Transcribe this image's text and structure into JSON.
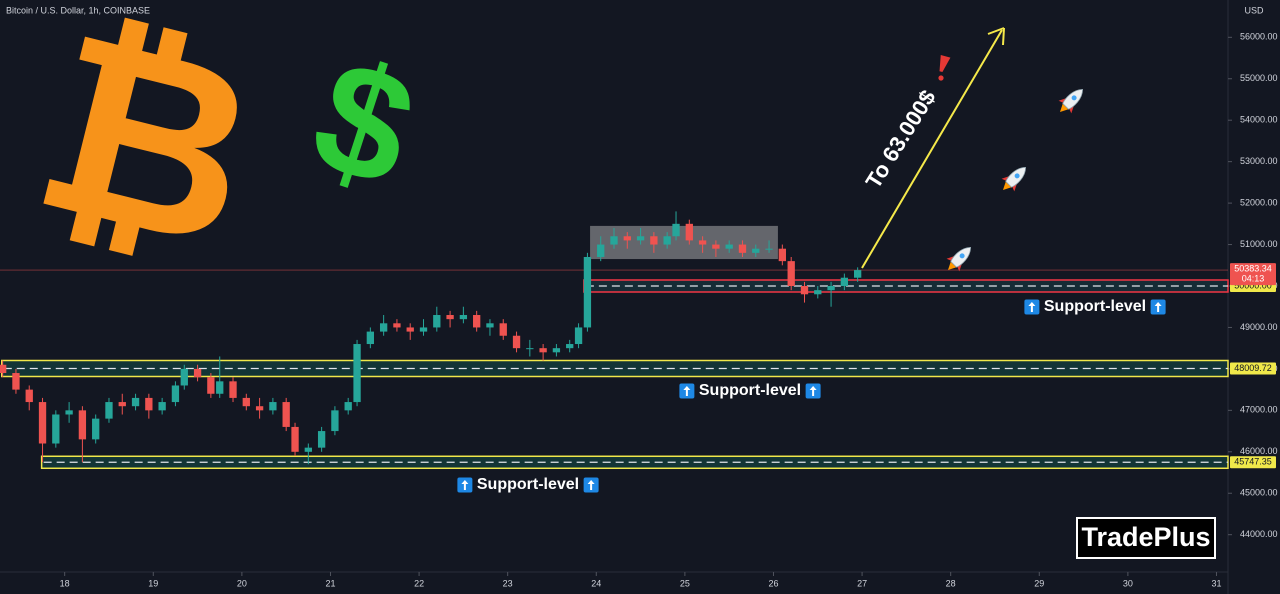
{
  "chart_data": {
    "type": "candlestick",
    "title": "Bitcoin / U.S. Dollar, 1h, COINBASE",
    "currency": "USD",
    "up_color": "#26a69a",
    "down_color": "#ef5350",
    "x": [
      17.3,
      17.45,
      17.6,
      17.75,
      17.9,
      18.05,
      18.2,
      18.35,
      18.5,
      18.65,
      18.8,
      18.95,
      19.1,
      19.25,
      19.35,
      19.5,
      19.65,
      19.75,
      19.9,
      20.05,
      20.2,
      20.35,
      20.5,
      20.6,
      20.75,
      20.9,
      21.05,
      21.2,
      21.3,
      21.45,
      21.6,
      21.75,
      21.9,
      22.05,
      22.2,
      22.35,
      22.5,
      22.65,
      22.8,
      22.95,
      23.1,
      23.25,
      23.4,
      23.55,
      23.7,
      23.8,
      23.9,
      24.05,
      24.2,
      24.35,
      24.5,
      24.65,
      24.8,
      24.9,
      25.05,
      25.2,
      25.35,
      25.5,
      25.65,
      25.8,
      25.95,
      26.1,
      26.2,
      26.35,
      26.5,
      26.65,
      26.8,
      26.95
    ],
    "open": [
      48100,
      47900,
      47500,
      47200,
      46200,
      46900,
      47000,
      46300,
      46800,
      47200,
      47100,
      47300,
      47000,
      47200,
      47600,
      48000,
      47800,
      47400,
      47700,
      47300,
      47100,
      47000,
      47200,
      46600,
      46000,
      46100,
      46500,
      47000,
      47200,
      48600,
      48900,
      49100,
      49000,
      48900,
      49000,
      49300,
      49200,
      49300,
      49000,
      49100,
      48800,
      48500,
      48500,
      48400,
      48500,
      48600,
      49000,
      50700,
      51000,
      51200,
      51100,
      51200,
      51000,
      51200,
      51500,
      51100,
      51000,
      50900,
      51000,
      50800,
      50900,
      50900,
      50600,
      50000,
      49800,
      49900,
      50000,
      50200
    ],
    "high": [
      48200,
      48000,
      47600,
      47300,
      47000,
      47200,
      47100,
      46900,
      47300,
      47400,
      47400,
      47400,
      47300,
      47700,
      48100,
      48100,
      47900,
      48300,
      47800,
      47400,
      47300,
      47300,
      47300,
      46700,
      46200,
      46600,
      47100,
      47300,
      48700,
      49000,
      49300,
      49200,
      49100,
      49200,
      49500,
      49400,
      49500,
      49400,
      49200,
      49200,
      48900,
      48700,
      48600,
      48600,
      48700,
      49100,
      50800,
      51200,
      51400,
      51300,
      51400,
      51300,
      51300,
      51800,
      51600,
      51200,
      51100,
      51100,
      51100,
      51000,
      51100,
      51000,
      50700,
      50100,
      50000,
      50100,
      50300,
      50450
    ],
    "low": [
      47800,
      47400,
      47000,
      45750,
      46100,
      46700,
      45750,
      46200,
      46700,
      46900,
      47000,
      46800,
      46900,
      47100,
      47500,
      47700,
      47300,
      47300,
      47200,
      47000,
      46800,
      46900,
      46500,
      45900,
      45700,
      46000,
      46400,
      46900,
      47100,
      48500,
      48800,
      48900,
      48700,
      48800,
      48900,
      49000,
      49100,
      48900,
      48800,
      48700,
      48400,
      48300,
      48200,
      48300,
      48400,
      48500,
      48900,
      50600,
      50900,
      50900,
      51000,
      50800,
      50900,
      51100,
      51000,
      50800,
      50700,
      50800,
      50700,
      50700,
      50800,
      50500,
      49900,
      49600,
      49700,
      49500,
      49900,
      50100
    ],
    "close": [
      47900,
      47500,
      47200,
      46200,
      46900,
      47000,
      46300,
      46800,
      47200,
      47100,
      47300,
      47000,
      47200,
      47600,
      48000,
      47800,
      47400,
      47700,
      47300,
      47100,
      47000,
      47200,
      46600,
      46000,
      46100,
      46500,
      47000,
      47200,
      48600,
      48900,
      49100,
      49000,
      48900,
      49000,
      49300,
      49200,
      49300,
      49000,
      49100,
      48800,
      48500,
      48500,
      48400,
      48500,
      48600,
      49000,
      50700,
      51000,
      51200,
      51100,
      51200,
      51000,
      51200,
      51500,
      51100,
      51000,
      50900,
      51000,
      50800,
      50900,
      50900,
      50600,
      50000,
      49800,
      49900,
      50000,
      50200,
      50383.34
    ],
    "xlim": [
      17.27,
      31.13
    ],
    "xticks": [
      18,
      19,
      20,
      21,
      22,
      23,
      24,
      25,
      26,
      27,
      28,
      29,
      30,
      31
    ],
    "ylim": [
      43100,
      56900
    ],
    "yticks": [
      {
        "value": 44000,
        "label": "44000.00"
      },
      {
        "value": 45000,
        "label": "45000.00"
      },
      {
        "value": 46000,
        "label": "46000.00"
      },
      {
        "value": 47000,
        "label": "47000.00"
      },
      {
        "value": 48000,
        "label": "48000.00"
      },
      {
        "value": 49000,
        "label": "49000.00"
      },
      {
        "value": 50000,
        "label": "50000.00"
      },
      {
        "value": 51000,
        "label": "51000.00"
      },
      {
        "value": 52000,
        "label": "52000.00"
      },
      {
        "value": 53000,
        "label": "53000.00"
      },
      {
        "value": 54000,
        "label": "54000.00"
      },
      {
        "value": 55000,
        "label": "55000.00"
      },
      {
        "value": 56000,
        "label": "56000.00"
      }
    ],
    "last_price": {
      "value": 50383.34,
      "label": "50383.34"
    },
    "countdown": "04:13",
    "levels": [
      {
        "value": 50000,
        "label": "50000.00",
        "text": "Support-level"
      },
      {
        "value": 48009.72,
        "label": "48009.72",
        "text": "Support-level"
      },
      {
        "value": 45747.35,
        "label": "45747.35",
        "text": "Support-level"
      }
    ],
    "annotations": {
      "target": "To 63.000$",
      "bitcoin_symbol": "₿",
      "dollar_symbol": "$",
      "brand": "TradePlus"
    }
  }
}
